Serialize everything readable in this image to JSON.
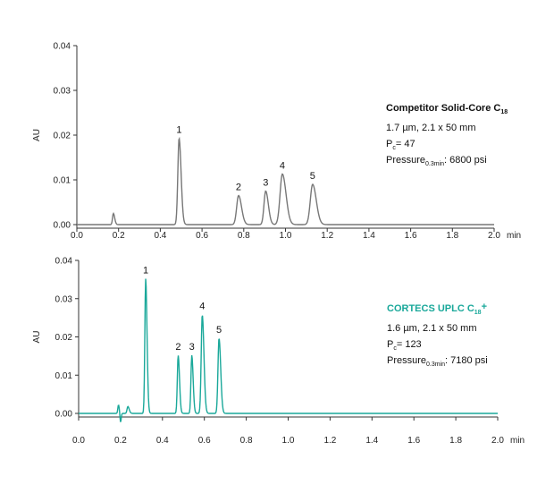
{
  "chart_data": [
    {
      "type": "line",
      "panel": "top",
      "ylabel": "AU",
      "xlim": [
        0,
        2.0
      ],
      "ylim": [
        0,
        0.04
      ],
      "x_ticks": [
        "0.0",
        "0.2",
        "0.4",
        "0.6",
        "0.8",
        "1.0",
        "1.2",
        "1.4",
        "1.6",
        "1.8",
        "2.0"
      ],
      "x_unit": "min",
      "y_ticks": [
        "0.00",
        "0.01",
        "0.02",
        "0.03",
        "0.04"
      ],
      "color": "#777777",
      "baseline": 0.0,
      "peaks": [
        {
          "label": "",
          "x": 0.175,
          "y": 0.0025,
          "width": 0.004
        },
        {
          "label": "1",
          "x": 0.49,
          "y": 0.0193,
          "width": 0.006
        },
        {
          "label": "2",
          "x": 0.775,
          "y": 0.0065,
          "width": 0.009
        },
        {
          "label": "3",
          "x": 0.905,
          "y": 0.0075,
          "width": 0.008
        },
        {
          "label": "4",
          "x": 0.985,
          "y": 0.0113,
          "width": 0.011
        },
        {
          "label": "5",
          "x": 1.13,
          "y": 0.009,
          "width": 0.011
        }
      ],
      "annotation": {
        "title": "Competitor Solid-Core C",
        "title_sub": "18",
        "lines": [
          {
            "text": "1.7 µm, 2.1 x 50 mm"
          },
          {
            "pre": "P",
            "sub": "c",
            "post": "= 47"
          },
          {
            "pre": "Pressure",
            "sub": "0.3min",
            "post": ": 6800 psi"
          }
        ],
        "title_color": "#111111"
      }
    },
    {
      "type": "line",
      "panel": "bottom",
      "ylabel": "AU",
      "xlim": [
        0,
        2.0
      ],
      "ylim": [
        0,
        0.04
      ],
      "x_ticks": [
        "0.0",
        "0.2",
        "0.4",
        "0.6",
        "0.8",
        "1.0",
        "1.2",
        "1.4",
        "1.6",
        "1.8",
        "2.0"
      ],
      "x_unit": "min",
      "y_ticks": [
        "0.00",
        "0.01",
        "0.02",
        "0.03",
        "0.04"
      ],
      "color": "#1aa89a",
      "baseline": 0.0,
      "peaks": [
        {
          "label": "",
          "x": 0.19,
          "y": 0.0022,
          "width": 0.003
        },
        {
          "label": "",
          "x": 0.235,
          "y": 0.0018,
          "width": 0.004
        },
        {
          "label": "1",
          "x": 0.32,
          "y": 0.0352,
          "width": 0.004
        },
        {
          "label": "2",
          "x": 0.475,
          "y": 0.0152,
          "width": 0.004
        },
        {
          "label": "3",
          "x": 0.54,
          "y": 0.0152,
          "width": 0.004
        },
        {
          "label": "4",
          "x": 0.59,
          "y": 0.0258,
          "width": 0.005
        },
        {
          "label": "5",
          "x": 0.67,
          "y": 0.0197,
          "width": 0.005
        }
      ],
      "dips": [
        {
          "x": 0.2,
          "y": -0.0025,
          "width": 0.003
        }
      ],
      "annotation": {
        "title": "CORTECS UPLC C",
        "title_sub": "18",
        "title_suffix": "+",
        "lines": [
          {
            "text": "1.6 µm, 2.1 x 50 mm"
          },
          {
            "pre": "P",
            "sub": "c",
            "post": "= 123"
          },
          {
            "pre": "Pressure",
            "sub": "0.3min",
            "post": ": 7180 psi"
          }
        ],
        "title_color": "#1aa89a"
      }
    }
  ]
}
